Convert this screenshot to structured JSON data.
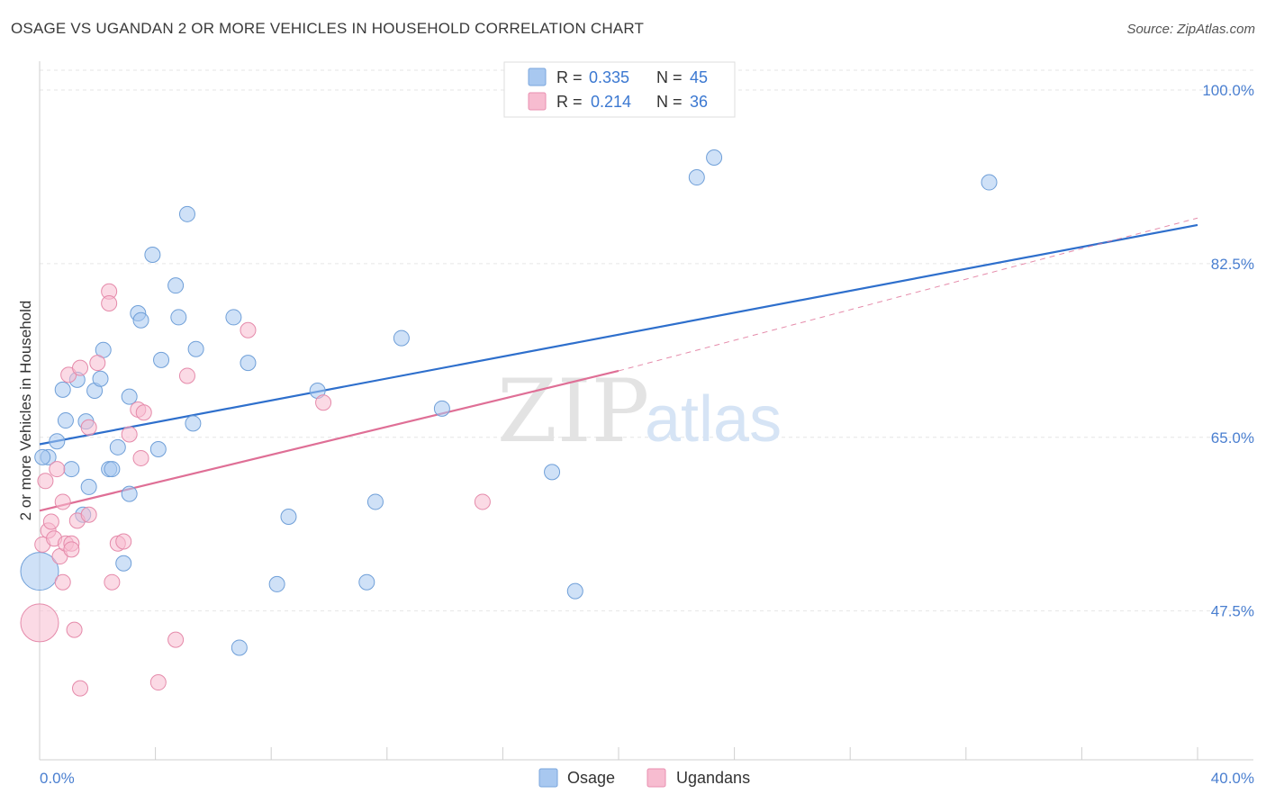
{
  "title": "OSAGE VS UGANDAN 2 OR MORE VEHICLES IN HOUSEHOLD CORRELATION CHART",
  "source": "Source: ZipAtlas.com",
  "watermark": {
    "zip": "ZIP",
    "atlas": "atlas"
  },
  "chart_data": {
    "type": "scatter",
    "title": "OSAGE VS UGANDAN 2 OR MORE VEHICLES IN HOUSEHOLD CORRELATION CHART",
    "xlabel": "",
    "ylabel": "2 or more Vehicles in Household",
    "xlim": [
      0,
      40
    ],
    "ylim": [
      32.5,
      102.0
    ],
    "x_tick_labels": [
      {
        "value": 0,
        "label": "0.0%"
      },
      {
        "value": 40,
        "label": "40.0%"
      }
    ],
    "x_minor_ticks": [
      0,
      4,
      8,
      12,
      16,
      20,
      24,
      28,
      32,
      36,
      40
    ],
    "y_ticks": [
      {
        "value": 100.0,
        "label": "100.0%"
      },
      {
        "value": 82.5,
        "label": "82.5%"
      },
      {
        "value": 65.0,
        "label": "65.0%"
      },
      {
        "value": 47.5,
        "label": "47.5%"
      }
    ],
    "grid": true,
    "legend": {
      "placement": "top-center",
      "rows": [
        {
          "r_label": "R = ",
          "r_value": "0.335",
          "n_label": "N = ",
          "n_value": "45",
          "color": "#a8c8f0",
          "stroke": "#7aa6dc"
        },
        {
          "r_label": "R = ",
          "r_value": "0.214",
          "n_label": "N = ",
          "n_value": "36",
          "color": "#f7bcd0",
          "stroke": "#e98fb0"
        }
      ]
    },
    "series": [
      {
        "name": "Osage",
        "color": "#a8c8f0",
        "stroke": "#6f9fd8",
        "line_color": "#2e6fcc",
        "trend": {
          "x0": 0.0,
          "y0": 64.3,
          "x1": 40.0,
          "y1": 86.4
        },
        "points": [
          [
            0.0,
            51.5
          ],
          [
            0.3,
            63.0
          ],
          [
            0.6,
            64.6
          ],
          [
            0.8,
            69.8
          ],
          [
            0.9,
            66.7
          ],
          [
            1.1,
            61.8
          ],
          [
            1.3,
            70.8
          ],
          [
            1.5,
            57.2
          ],
          [
            1.6,
            66.6
          ],
          [
            1.7,
            60.0
          ],
          [
            1.9,
            69.7
          ],
          [
            2.1,
            70.9
          ],
          [
            2.2,
            73.8
          ],
          [
            2.4,
            61.8
          ],
          [
            2.5,
            61.8
          ],
          [
            2.7,
            64.0
          ],
          [
            2.9,
            52.3
          ],
          [
            3.1,
            69.1
          ],
          [
            3.1,
            59.3
          ],
          [
            3.4,
            77.5
          ],
          [
            3.5,
            76.8
          ],
          [
            3.9,
            83.4
          ],
          [
            4.1,
            63.8
          ],
          [
            4.2,
            72.8
          ],
          [
            4.7,
            80.3
          ],
          [
            4.8,
            77.1
          ],
          [
            5.1,
            87.5
          ],
          [
            5.3,
            66.4
          ],
          [
            5.4,
            73.9
          ],
          [
            6.7,
            77.1
          ],
          [
            6.9,
            43.8
          ],
          [
            7.2,
            72.5
          ],
          [
            8.2,
            50.2
          ],
          [
            8.6,
            57.0
          ],
          [
            9.6,
            69.7
          ],
          [
            11.3,
            50.4
          ],
          [
            11.6,
            58.5
          ],
          [
            12.5,
            75.0
          ],
          [
            13.9,
            67.9
          ],
          [
            17.7,
            61.5
          ],
          [
            18.5,
            49.5
          ],
          [
            22.7,
            91.2
          ],
          [
            23.3,
            93.2
          ],
          [
            32.8,
            90.7
          ],
          [
            0.1,
            63.0
          ]
        ]
      },
      {
        "name": "Ugandans",
        "color": "#f7bcd0",
        "stroke": "#e58aaa",
        "line_color": "#df6f96",
        "trend": {
          "x0": 0.0,
          "y0": 57.6,
          "x1": 20.0,
          "y1": 71.7
        },
        "trend_ext": {
          "x0": 20.0,
          "y0": 71.7,
          "x1": 40.0,
          "y1": 87.1
        },
        "points": [
          [
            0.0,
            46.3
          ],
          [
            0.1,
            54.2
          ],
          [
            0.2,
            60.6
          ],
          [
            0.3,
            55.6
          ],
          [
            0.4,
            56.5
          ],
          [
            0.5,
            54.8
          ],
          [
            0.6,
            61.8
          ],
          [
            0.7,
            53.0
          ],
          [
            0.8,
            58.5
          ],
          [
            0.8,
            50.4
          ],
          [
            0.9,
            54.3
          ],
          [
            1.0,
            71.3
          ],
          [
            1.1,
            54.3
          ],
          [
            1.1,
            53.7
          ],
          [
            1.2,
            45.6
          ],
          [
            1.3,
            56.6
          ],
          [
            1.4,
            39.7
          ],
          [
            1.4,
            72.0
          ],
          [
            1.7,
            57.2
          ],
          [
            1.7,
            66.0
          ],
          [
            2.0,
            72.5
          ],
          [
            2.4,
            79.7
          ],
          [
            2.4,
            78.5
          ],
          [
            2.5,
            50.4
          ],
          [
            2.7,
            54.3
          ],
          [
            2.9,
            54.5
          ],
          [
            3.1,
            65.3
          ],
          [
            3.4,
            67.8
          ],
          [
            3.5,
            62.9
          ],
          [
            3.6,
            67.5
          ],
          [
            4.1,
            40.3
          ],
          [
            4.7,
            44.6
          ],
          [
            5.1,
            71.2
          ],
          [
            7.2,
            75.8
          ],
          [
            9.8,
            68.5
          ],
          [
            15.3,
            58.5
          ]
        ]
      }
    ]
  },
  "bottom_legend": [
    {
      "label": "Osage",
      "color": "#a8c8f0",
      "stroke": "#7aa6dc"
    },
    {
      "label": "Ugandans",
      "color": "#f7bcd0",
      "stroke": "#e98fb0"
    }
  ]
}
